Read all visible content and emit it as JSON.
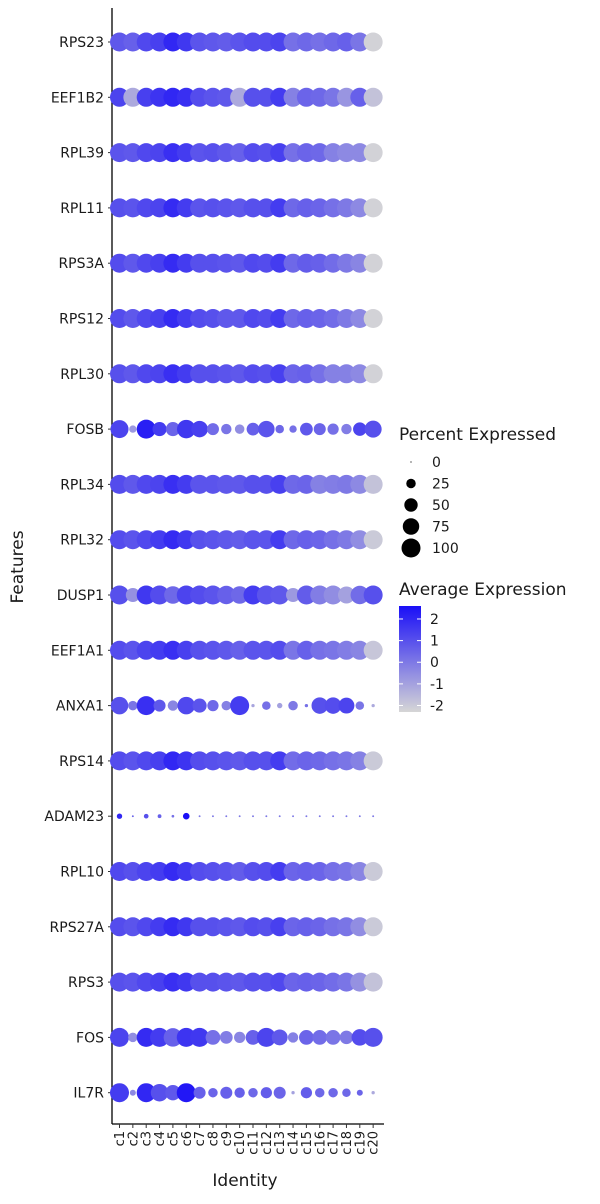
{
  "chart_data": {
    "type": "dot",
    "xlabel": "Identity",
    "ylabel": "Features",
    "identities": [
      "c1",
      "c2",
      "c3",
      "c4",
      "c5",
      "c6",
      "c7",
      "c8",
      "c9",
      "c10",
      "c11",
      "c12",
      "c13",
      "c14",
      "c15",
      "c16",
      "c17",
      "c18",
      "c19",
      "c20"
    ],
    "genes": [
      "RPS23",
      "EEF1B2",
      "RPL39",
      "RPL11",
      "RPS3A",
      "RPS12",
      "RPL30",
      "FOSB",
      "RPL34",
      "RPL32",
      "DUSP1",
      "EEF1A1",
      "ANXA1",
      "RPS14",
      "ADAM23",
      "RPL10",
      "RPS27A",
      "RPS3",
      "FOS",
      "IL7R"
    ],
    "percent_expressed": [
      [
        100,
        100,
        100,
        100,
        100,
        100,
        100,
        100,
        100,
        100,
        100,
        100,
        100,
        100,
        100,
        100,
        100,
        100,
        100,
        100
      ],
      [
        100,
        100,
        100,
        100,
        100,
        100,
        100,
        100,
        100,
        100,
        100,
        100,
        100,
        100,
        100,
        100,
        100,
        100,
        100,
        100
      ],
      [
        100,
        100,
        100,
        100,
        100,
        100,
        100,
        100,
        100,
        100,
        100,
        100,
        100,
        100,
        100,
        100,
        100,
        100,
        100,
        100
      ],
      [
        100,
        100,
        100,
        100,
        100,
        100,
        100,
        100,
        100,
        100,
        100,
        100,
        100,
        100,
        100,
        100,
        100,
        100,
        100,
        100
      ],
      [
        100,
        100,
        100,
        100,
        100,
        100,
        100,
        100,
        100,
        100,
        100,
        100,
        100,
        100,
        100,
        100,
        100,
        100,
        100,
        100
      ],
      [
        100,
        100,
        100,
        100,
        100,
        100,
        100,
        100,
        100,
        100,
        100,
        100,
        100,
        100,
        100,
        100,
        100,
        100,
        100,
        100
      ],
      [
        100,
        100,
        100,
        100,
        100,
        100,
        100,
        100,
        100,
        100,
        100,
        100,
        100,
        100,
        100,
        100,
        100,
        100,
        100,
        100
      ],
      [
        90,
        15,
        100,
        55,
        55,
        95,
        75,
        40,
        30,
        25,
        45,
        75,
        20,
        15,
        45,
        40,
        35,
        30,
        50,
        80
      ],
      [
        100,
        100,
        100,
        100,
        100,
        100,
        100,
        100,
        100,
        100,
        100,
        100,
        100,
        100,
        100,
        100,
        100,
        100,
        100,
        100
      ],
      [
        100,
        100,
        100,
        100,
        100,
        100,
        100,
        100,
        100,
        100,
        100,
        100,
        100,
        100,
        100,
        100,
        100,
        100,
        100,
        100
      ],
      [
        100,
        55,
        100,
        100,
        85,
        100,
        100,
        100,
        95,
        85,
        100,
        100,
        100,
        55,
        100,
        100,
        100,
        80,
        95,
        100
      ],
      [
        100,
        100,
        100,
        100,
        100,
        100,
        100,
        100,
        100,
        100,
        100,
        100,
        100,
        100,
        100,
        100,
        100,
        100,
        100,
        100
      ],
      [
        85,
        25,
        100,
        40,
        30,
        85,
        55,
        35,
        25,
        100,
        3,
        20,
        8,
        25,
        3,
        75,
        75,
        70,
        20,
        3
      ],
      [
        100,
        100,
        100,
        100,
        100,
        100,
        100,
        100,
        100,
        100,
        100,
        100,
        100,
        100,
        100,
        100,
        100,
        100,
        100,
        100
      ],
      [
        8,
        1,
        6,
        4,
        2,
        12,
        1,
        1,
        1,
        1,
        1,
        1,
        1,
        1,
        1,
        1,
        1,
        1,
        1,
        1
      ],
      [
        100,
        100,
        100,
        100,
        100,
        100,
        100,
        100,
        100,
        100,
        100,
        100,
        100,
        100,
        100,
        100,
        100,
        100,
        100,
        100
      ],
      [
        100,
        100,
        100,
        100,
        100,
        100,
        100,
        100,
        100,
        100,
        100,
        100,
        100,
        100,
        100,
        100,
        100,
        100,
        100,
        100
      ],
      [
        100,
        100,
        100,
        100,
        100,
        100,
        100,
        100,
        100,
        100,
        100,
        100,
        100,
        100,
        100,
        100,
        100,
        100,
        100,
        100
      ],
      [
        100,
        25,
        100,
        100,
        95,
        100,
        100,
        60,
        45,
        35,
        60,
        100,
        70,
        30,
        60,
        60,
        60,
        50,
        75,
        100
      ],
      [
        100,
        10,
        100,
        85,
        65,
        100,
        40,
        25,
        40,
        30,
        25,
        35,
        40,
        3,
        35,
        25,
        25,
        20,
        10,
        3
      ]
    ],
    "average_expression": [
      [
        0.8,
        0.6,
        1.2,
        1.4,
        2.0,
        1.6,
        0.9,
        0.8,
        0.7,
        0.9,
        1.1,
        1.1,
        1.3,
        0.2,
        0.4,
        0.2,
        0.4,
        0.6,
        0.1,
        -2.2
      ],
      [
        1.3,
        -1.2,
        1.4,
        1.7,
        2.0,
        1.8,
        1.1,
        0.9,
        0.8,
        -1.2,
        1.0,
        1.0,
        1.5,
        -0.2,
        0.5,
        0.4,
        0.1,
        -0.7,
        0.6,
        -1.8
      ],
      [
        0.9,
        0.8,
        1.2,
        1.3,
        1.8,
        1.5,
        0.9,
        1.0,
        0.8,
        0.6,
        1.1,
        1.0,
        1.4,
        0.2,
        0.5,
        0.4,
        -0.2,
        -0.4,
        -0.4,
        -2.2
      ],
      [
        1.0,
        0.9,
        1.2,
        1.3,
        1.9,
        1.5,
        0.9,
        1.0,
        0.9,
        0.8,
        1.0,
        1.0,
        1.5,
        0.4,
        0.6,
        0.5,
        0.2,
        0.0,
        -0.4,
        -2.2
      ],
      [
        1.1,
        0.8,
        1.2,
        1.4,
        1.9,
        1.5,
        1.0,
        1.0,
        0.9,
        0.8,
        1.2,
        1.1,
        1.5,
        0.4,
        0.7,
        0.6,
        0.3,
        0.0,
        -0.3,
        -2.2
      ],
      [
        1.1,
        0.8,
        1.2,
        1.4,
        1.9,
        1.5,
        1.1,
        1.0,
        0.8,
        0.8,
        1.2,
        1.1,
        1.5,
        0.4,
        0.6,
        0.5,
        0.3,
        0.0,
        -0.4,
        -2.2
      ],
      [
        1.0,
        0.8,
        1.2,
        1.3,
        1.8,
        1.5,
        1.0,
        1.0,
        0.9,
        0.8,
        1.1,
        1.0,
        1.4,
        0.5,
        0.6,
        0.2,
        -0.2,
        -0.2,
        -0.4,
        -2.2
      ],
      [
        1.3,
        -0.8,
        2.2,
        1.5,
        0.5,
        1.6,
        1.4,
        0.3,
        0.1,
        -0.5,
        0.6,
        0.9,
        0.4,
        0.2,
        0.8,
        0.5,
        0.2,
        -0.1,
        1.3,
        1.0
      ],
      [
        1.1,
        0.8,
        1.2,
        1.3,
        1.8,
        1.5,
        0.9,
        0.9,
        0.8,
        0.8,
        1.0,
        1.0,
        1.4,
        0.4,
        0.5,
        -0.2,
        -0.1,
        0.0,
        -0.4,
        -1.8
      ],
      [
        1.1,
        0.9,
        1.2,
        1.5,
        1.9,
        1.6,
        1.0,
        0.9,
        0.8,
        0.7,
        0.9,
        0.9,
        1.5,
        0.4,
        0.6,
        0.5,
        0.2,
        0.0,
        -0.5,
        -2.0
      ],
      [
        1.0,
        -0.6,
        1.6,
        1.1,
        0.4,
        1.3,
        1.1,
        0.9,
        0.6,
        0.4,
        1.5,
        0.9,
        0.8,
        -0.8,
        0.7,
        -0.1,
        -0.5,
        -1.0,
        0.3,
        1.0
      ],
      [
        1.1,
        0.9,
        1.3,
        1.5,
        1.8,
        1.4,
        1.0,
        0.9,
        0.8,
        0.6,
        0.9,
        0.9,
        1.1,
        0.1,
        0.6,
        0.2,
        0.1,
        -0.1,
        -0.3,
        -1.9
      ],
      [
        1.0,
        0.1,
        1.8,
        0.8,
        -0.3,
        1.2,
        0.9,
        0.4,
        -0.2,
        1.5,
        -1.1,
        0.2,
        -1.0,
        0.0,
        0.2,
        1.0,
        1.1,
        1.3,
        0.1,
        -1.2
      ],
      [
        1.1,
        0.9,
        1.2,
        1.4,
        2.0,
        1.7,
        1.1,
        1.0,
        0.9,
        0.8,
        1.0,
        1.0,
        1.5,
        0.3,
        0.5,
        0.4,
        0.2,
        0.1,
        -0.2,
        -2.0
      ],
      [
        2.0,
        0.5,
        1.0,
        0.6,
        0.2,
        2.6,
        0.0,
        0.0,
        0.0,
        0.0,
        0.0,
        0.0,
        0.0,
        0.0,
        0.0,
        0.0,
        0.0,
        0.0,
        0.0,
        0.0
      ],
      [
        1.2,
        1.0,
        1.3,
        1.5,
        1.9,
        1.6,
        1.1,
        1.0,
        0.9,
        0.7,
        1.0,
        1.1,
        1.5,
        0.5,
        0.6,
        0.5,
        0.2,
        0.1,
        -0.3,
        -2.0
      ],
      [
        1.1,
        0.9,
        1.2,
        1.5,
        1.9,
        1.6,
        1.0,
        1.0,
        0.9,
        0.8,
        1.1,
        1.0,
        1.4,
        0.5,
        0.6,
        0.5,
        0.2,
        0.1,
        -0.5,
        -2.0
      ],
      [
        1.0,
        0.9,
        1.2,
        1.4,
        1.8,
        1.6,
        1.0,
        1.0,
        0.9,
        0.8,
        1.0,
        1.0,
        1.2,
        0.5,
        0.6,
        0.5,
        0.3,
        0.1,
        -0.6,
        -1.8
      ],
      [
        1.3,
        -0.5,
        1.9,
        1.5,
        0.6,
        1.7,
        1.6,
        0.2,
        -0.1,
        -0.3,
        0.6,
        1.3,
        0.8,
        -0.2,
        0.5,
        0.3,
        0.1,
        0.0,
        1.1,
        1.0
      ],
      [
        1.5,
        -0.4,
        2.0,
        1.0,
        0.8,
        2.4,
        0.6,
        0.5,
        0.6,
        0.6,
        0.4,
        0.7,
        0.5,
        -1.0,
        0.7,
        0.4,
        0.4,
        0.4,
        0.5,
        -1.2
      ]
    ],
    "size_legend": {
      "title": "Percent Expressed",
      "breaks": [
        0,
        25,
        50,
        75,
        100
      ],
      "labels": [
        "0",
        "25",
        "50",
        "75",
        "100"
      ]
    },
    "color_legend": {
      "title": "Average Expression",
      "breaks": [
        2,
        1,
        0,
        -1,
        -2
      ],
      "labels": [
        "2",
        "1",
        "0",
        "-1",
        "-2"
      ],
      "range": [
        -2.3,
        2.6
      ],
      "low_color": "#d6d6d6",
      "high_color": "#1a0ff7"
    }
  }
}
